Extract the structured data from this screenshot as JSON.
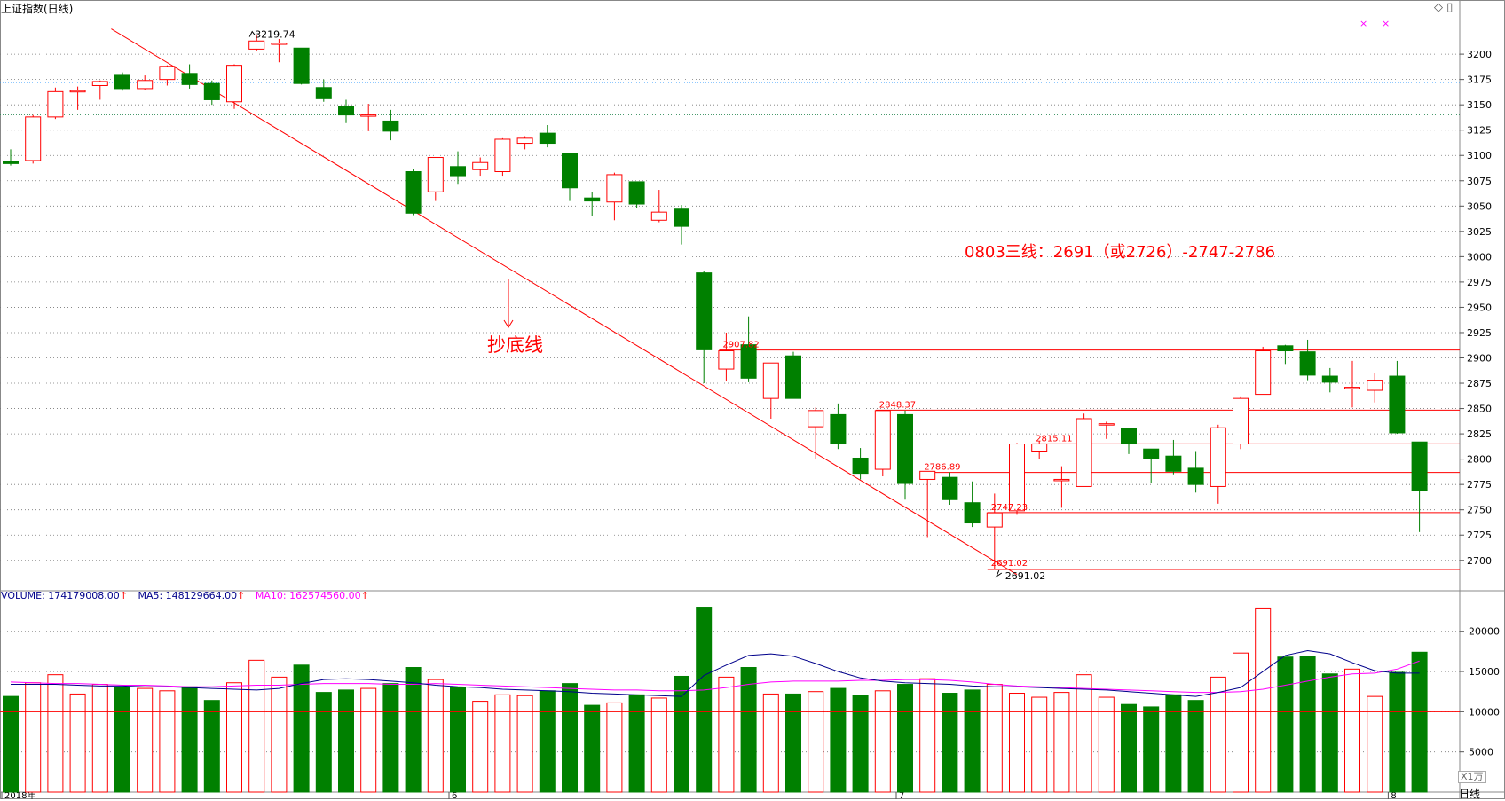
{
  "title": "上证指数(日线)",
  "period_label": "日线",
  "window_controls": "◇ ▯",
  "annotations": {
    "main_text": "0803三线：2691（或2726）-2747-2786",
    "bottom_line_label": "抄底线"
  },
  "volume_legend": {
    "volume": "VOLUME: 174179008.00",
    "ma5": "MA5: 148129664.00",
    "ma10": "MA10: 162574560.00"
  },
  "volume_unit": "X1万",
  "colors": {
    "up": "#ff0000",
    "down": "#008000",
    "ma5": "#00008b",
    "ma10": "#ff00ff",
    "grid": "#777777",
    "hline": "#ff0000"
  },
  "chart_data": [
    {
      "type": "candlestick",
      "title": "上证指数(日线)",
      "ylim": [
        2670,
        3222
      ],
      "y_ticks": [
        3200,
        3175,
        3150,
        3125,
        3100,
        3075,
        3050,
        3025,
        3000,
        2975,
        2950,
        2925,
        2900,
        2875,
        2850,
        2825,
        2800,
        2775,
        2750,
        2725,
        2700
      ],
      "x_labels": [
        {
          "index": 0,
          "label": "2018年"
        },
        {
          "index": 20,
          "label": "6"
        },
        {
          "index": 40,
          "label": "7"
        },
        {
          "index": 62,
          "label": "8"
        }
      ],
      "candles": [
        {
          "o": 3094,
          "h": 3106,
          "l": 3090,
          "c": 3092
        },
        {
          "o": 3095,
          "h": 3140,
          "l": 3092,
          "c": 3138
        },
        {
          "o": 3138,
          "h": 3167,
          "l": 3136,
          "c": 3163
        },
        {
          "o": 3163,
          "h": 3168,
          "l": 3145,
          "c": 3164
        },
        {
          "o": 3169,
          "h": 3174,
          "l": 3155,
          "c": 3173
        },
        {
          "o": 3180,
          "h": 3182,
          "l": 3164,
          "c": 3166
        },
        {
          "o": 3166,
          "h": 3179,
          "l": 3165,
          "c": 3174
        },
        {
          "o": 3175,
          "h": 3189,
          "l": 3169,
          "c": 3188
        },
        {
          "o": 3181,
          "h": 3190,
          "l": 3166,
          "c": 3170
        },
        {
          "o": 3171,
          "h": 3174,
          "l": 3150,
          "c": 3155
        },
        {
          "o": 3153,
          "h": 3190,
          "l": 3146,
          "c": 3189
        },
        {
          "o": 3205,
          "h": 3219,
          "l": 3203,
          "c": 3213
        },
        {
          "o": 3210,
          "h": 3215,
          "l": 3192,
          "c": 3211
        },
        {
          "o": 3206,
          "h": 3206,
          "l": 3170,
          "c": 3171
        },
        {
          "o": 3167,
          "h": 3175,
          "l": 3153,
          "c": 3156
        },
        {
          "o": 3148,
          "h": 3155,
          "l": 3132,
          "c": 3140
        },
        {
          "o": 3139,
          "h": 3151,
          "l": 3124,
          "c": 3140
        },
        {
          "o": 3134,
          "h": 3145,
          "l": 3115,
          "c": 3124
        },
        {
          "o": 3084,
          "h": 3087,
          "l": 3041,
          "c": 3043
        },
        {
          "o": 3064,
          "h": 3098,
          "l": 3055,
          "c": 3098
        },
        {
          "o": 3089,
          "h": 3104,
          "l": 3072,
          "c": 3080
        },
        {
          "o": 3086,
          "h": 3098,
          "l": 3080,
          "c": 3093
        },
        {
          "o": 3084,
          "h": 3117,
          "l": 3080,
          "c": 3116
        },
        {
          "o": 3112,
          "h": 3119,
          "l": 3106,
          "c": 3117
        },
        {
          "o": 3122,
          "h": 3130,
          "l": 3108,
          "c": 3112
        },
        {
          "o": 3102,
          "h": 3102,
          "l": 3055,
          "c": 3068
        },
        {
          "o": 3058,
          "h": 3064,
          "l": 3040,
          "c": 3055
        },
        {
          "o": 3054,
          "h": 3083,
          "l": 3036,
          "c": 3081
        },
        {
          "o": 3074,
          "h": 3074,
          "l": 3048,
          "c": 3052
        },
        {
          "o": 3036,
          "h": 3066,
          "l": 3034,
          "c": 3044
        },
        {
          "o": 3047,
          "h": 3051,
          "l": 3012,
          "c": 3030
        },
        {
          "o": 2984,
          "h": 2986,
          "l": 2875,
          "c": 2908
        },
        {
          "o": 2889,
          "h": 2925,
          "l": 2877,
          "c": 2907
        },
        {
          "o": 2913,
          "h": 2941,
          "l": 2876,
          "c": 2880
        },
        {
          "o": 2860,
          "h": 2895,
          "l": 2840,
          "c": 2895
        },
        {
          "o": 2902,
          "h": 2906,
          "l": 2860,
          "c": 2860
        },
        {
          "o": 2832,
          "h": 2851,
          "l": 2800,
          "c": 2848
        },
        {
          "o": 2844,
          "h": 2855,
          "l": 2810,
          "c": 2815
        },
        {
          "o": 2801,
          "h": 2811,
          "l": 2780,
          "c": 2786
        },
        {
          "o": 2790,
          "h": 2848,
          "l": 2783,
          "c": 2848
        },
        {
          "o": 2844,
          "h": 2848,
          "l": 2760,
          "c": 2776
        },
        {
          "o": 2780,
          "h": 2787,
          "l": 2723,
          "c": 2788
        },
        {
          "o": 2782,
          "h": 2787,
          "l": 2755,
          "c": 2760
        },
        {
          "o": 2757,
          "h": 2778,
          "l": 2733,
          "c": 2737
        },
        {
          "o": 2733,
          "h": 2766,
          "l": 2691,
          "c": 2747
        },
        {
          "o": 2749,
          "h": 2816,
          "l": 2745,
          "c": 2815
        },
        {
          "o": 2808,
          "h": 2818,
          "l": 2800,
          "c": 2815
        },
        {
          "o": 2780,
          "h": 2793,
          "l": 2752,
          "c": 2780
        },
        {
          "o": 2773,
          "h": 2845,
          "l": 2773,
          "c": 2840
        },
        {
          "o": 2835,
          "h": 2837,
          "l": 2820,
          "c": 2835
        },
        {
          "o": 2830,
          "h": 2830,
          "l": 2805,
          "c": 2815
        },
        {
          "o": 2810,
          "h": 2810,
          "l": 2776,
          "c": 2801
        },
        {
          "o": 2803,
          "h": 2819,
          "l": 2785,
          "c": 2788
        },
        {
          "o": 2791,
          "h": 2808,
          "l": 2767,
          "c": 2775
        },
        {
          "o": 2773,
          "h": 2834,
          "l": 2756,
          "c": 2831
        },
        {
          "o": 2815,
          "h": 2862,
          "l": 2810,
          "c": 2860
        },
        {
          "o": 2864,
          "h": 2911,
          "l": 2864,
          "c": 2907
        },
        {
          "o": 2912,
          "h": 2913,
          "l": 2894,
          "c": 2907
        },
        {
          "o": 2906,
          "h": 2918,
          "l": 2878,
          "c": 2883
        },
        {
          "o": 2882,
          "h": 2890,
          "l": 2866,
          "c": 2876
        },
        {
          "o": 2871,
          "h": 2897,
          "l": 2851,
          "c": 2871
        },
        {
          "o": 2868,
          "h": 2885,
          "l": 2856,
          "c": 2878
        },
        {
          "o": 2882,
          "h": 2897,
          "l": 2825,
          "c": 2826
        },
        {
          "o": 2817,
          "h": 2817,
          "l": 2728,
          "c": 2769
        }
      ],
      "price_labels": [
        {
          "index": 11,
          "value": 3219.74,
          "text": "3219.74"
        },
        {
          "index": 32,
          "value": 2907.82,
          "text": "2907.82"
        },
        {
          "index": 39,
          "value": 2848.37,
          "text": "2848.37"
        },
        {
          "index": 41,
          "value": 2786.89,
          "text": "2786.89"
        },
        {
          "index": 44,
          "value": 2747.23,
          "text": "2747.23"
        },
        {
          "index": 46,
          "value": 2815.11,
          "text": "2815.11"
        },
        {
          "index": 44,
          "value": 2691.02,
          "text": "2691.02"
        },
        {
          "index": 44,
          "value": 2691.02,
          "text": "2691.02"
        }
      ],
      "horizontal_lines": [
        {
          "value": 2907.82,
          "start_index": 32
        },
        {
          "value": 2848.37,
          "start_index": 39
        },
        {
          "value": 2815.11,
          "start_index": 46
        },
        {
          "value": 2786.89,
          "start_index": 41
        },
        {
          "value": 2747.23,
          "start_index": 44
        },
        {
          "value": 2691.02,
          "start_index": 44
        }
      ],
      "trend_line": {
        "from": {
          "index": 4.5,
          "value": 3225
        },
        "to": {
          "index": 45,
          "value": 2686
        }
      }
    },
    {
      "type": "bar",
      "title": "VOLUME",
      "ylim": [
        0,
        23500
      ],
      "y_ticks": [
        20000,
        15000,
        10000,
        5000
      ],
      "reference_line": 10000,
      "volumes": [
        11900,
        13600,
        14600,
        12200,
        13400,
        13000,
        12900,
        12600,
        13100,
        11400,
        13600,
        16400,
        14300,
        15800,
        12400,
        12700,
        12900,
        13500,
        15500,
        14000,
        13000,
        11300,
        12100,
        12000,
        12600,
        13500,
        10800,
        11100,
        12100,
        11700,
        14400,
        23000,
        14300,
        15500,
        12200,
        12200,
        12500,
        12900,
        12000,
        12600,
        13400,
        14100,
        12300,
        12700,
        13400,
        12300,
        11800,
        12400,
        14600,
        11800,
        10900,
        10600,
        12100,
        11400,
        14300,
        17300,
        22900,
        16800,
        16900,
        14700,
        15300,
        11900,
        14900,
        17400
      ],
      "ma5": [
        13400,
        13400,
        13400,
        13300,
        13200,
        13200,
        13100,
        13100,
        13000,
        12900,
        12800,
        12700,
        12900,
        13500,
        14000,
        14100,
        14000,
        13800,
        13600,
        13300,
        13100,
        13000,
        12800,
        12700,
        12600,
        12500,
        12300,
        12200,
        12100,
        12000,
        11900,
        14500,
        15800,
        17000,
        17200,
        16900,
        16000,
        15000,
        14200,
        13800,
        13600,
        13500,
        13400,
        13200,
        13100,
        13100,
        13000,
        12900,
        12800,
        12700,
        12500,
        12300,
        12100,
        11900,
        12400,
        13000,
        15000,
        17000,
        17600,
        17200,
        16100,
        15100,
        14800,
        14800
      ],
      "ma10": [
        13700,
        13600,
        13500,
        13500,
        13400,
        13300,
        13300,
        13200,
        13100,
        13100,
        13200,
        13300,
        13300,
        13400,
        13500,
        13500,
        13500,
        13400,
        13400,
        13500,
        13400,
        13300,
        13200,
        13100,
        13000,
        12900,
        12800,
        12700,
        12700,
        12600,
        12600,
        12700,
        13000,
        13400,
        13700,
        13800,
        13800,
        13800,
        13900,
        13900,
        14000,
        14000,
        13900,
        13700,
        13400,
        13200,
        13100,
        13000,
        12900,
        12800,
        12700,
        12600,
        12500,
        12400,
        12400,
        12500,
        12800,
        13300,
        13800,
        14300,
        14700,
        14800,
        15300,
        16300
      ]
    }
  ]
}
